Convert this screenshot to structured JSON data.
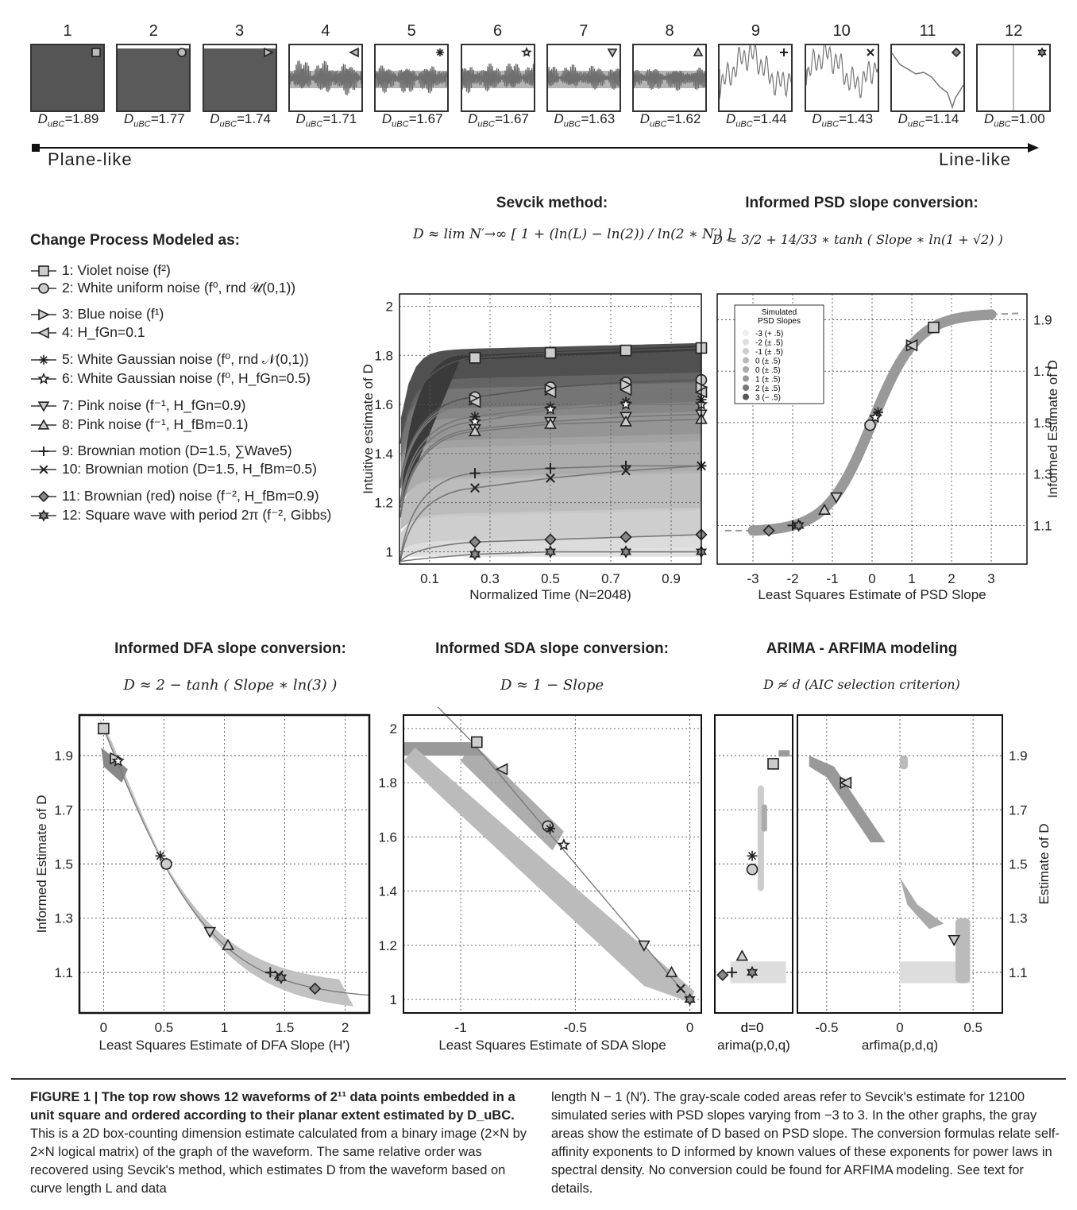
{
  "top_row": {
    "waveforms": [
      {
        "n": "1",
        "d": "1.89",
        "marker": "square"
      },
      {
        "n": "2",
        "d": "1.77",
        "marker": "circle"
      },
      {
        "n": "3",
        "d": "1.74",
        "marker": "tri-right"
      },
      {
        "n": "4",
        "d": "1.71",
        "marker": "tri-left"
      },
      {
        "n": "5",
        "d": "1.67",
        "marker": "asterisk"
      },
      {
        "n": "6",
        "d": "1.67",
        "marker": "star"
      },
      {
        "n": "7",
        "d": "1.63",
        "marker": "tri-down"
      },
      {
        "n": "8",
        "d": "1.62",
        "marker": "tri-up"
      },
      {
        "n": "9",
        "d": "1.44",
        "marker": "plus"
      },
      {
        "n": "10",
        "d": "1.43",
        "marker": "cross"
      },
      {
        "n": "11",
        "d": "1.14",
        "marker": "diamond"
      },
      {
        "n": "12",
        "d": "1.00",
        "marker": "hexstar"
      }
    ],
    "d_prefix": "D",
    "d_sub": "uBC",
    "left_label": "Plane-like",
    "right_label": "Line-like"
  },
  "legend": {
    "title": "Change Process Modeled as:",
    "items": [
      {
        "marker": "square",
        "text": "1: Violet noise (f²)"
      },
      {
        "marker": "circle",
        "text": "2: White uniform noise (f⁰, rnd 𝒰(0,1))"
      },
      {
        "marker": "tri-right",
        "text": "3: Blue noise (f¹)"
      },
      {
        "marker": "tri-left",
        "text": "4: H_fGn=0.1"
      },
      {
        "marker": "asterisk",
        "text": "5: White Gaussian noise (f⁰, rnd 𝒩(0,1))"
      },
      {
        "marker": "star",
        "text": "6: White Gaussian noise (f⁰, H_fGn=0.5)"
      },
      {
        "marker": "tri-down",
        "text": "7: Pink noise (f⁻¹, H_fGn=0.9)"
      },
      {
        "marker": "tri-up",
        "text": "8: Pink noise (f⁻¹, H_fBm=0.1)"
      },
      {
        "marker": "plus",
        "text": "9:  Brownian motion (D=1.5, ∑Wave5)"
      },
      {
        "marker": "cross",
        "text": "10: Brownian motion (D=1.5, H_fBm=0.5)"
      },
      {
        "marker": "diamond",
        "text": "11: Brownian (red) noise (f⁻², H_fBm=0.9)"
      },
      {
        "marker": "hexstar",
        "text": "12: Square wave with period 2π (f⁻², Gibbs)"
      }
    ]
  },
  "panels": {
    "sevcik": {
      "title": "Sevcik method:",
      "formula": "D ≈ lim N′→∞ [ 1 + (ln(L) − ln(2)) / ln(2 ∗ N′) ]"
    },
    "psd": {
      "title": "Informed PSD slope conversion:",
      "formula": "D ≈ 3/2 + 14/33 ∗ tanh ( Slope ∗ ln(1 + √2) )"
    },
    "dfa": {
      "title": "Informed DFA slope conversion:",
      "formula": "D ≈ 2 − tanh ( Slope ∗ ln(3) )"
    },
    "sda": {
      "title": "Informed SDA slope conversion:",
      "formula": "D ≈ 1 − Slope"
    },
    "arima": {
      "title": "ARIMA - ARFIMA modeling",
      "formula": "D ≉ d (AIC selection criterion)"
    }
  },
  "chart_data": [
    {
      "id": "sevcik",
      "type": "line",
      "xlabel": "Normalized Time (N=2048)",
      "ylabel": "Intuitive estimate of D",
      "xlim": [
        0,
        1
      ],
      "ylim": [
        0.95,
        2.05
      ],
      "xticks": [
        "0.1",
        "0.3",
        "0.5",
        "0.7",
        "0.9"
      ],
      "yticks": [
        "1",
        "1.2",
        "1.4",
        "1.6",
        "1.8",
        "2"
      ],
      "x": [
        0.25,
        0.5,
        0.75,
        1.0
      ],
      "series": [
        {
          "marker": "square",
          "values": [
            1.79,
            1.81,
            1.82,
            1.83
          ]
        },
        {
          "marker": "circle",
          "values": [
            1.63,
            1.67,
            1.69,
            1.7
          ]
        },
        {
          "marker": "tri-right",
          "values": [
            1.62,
            1.66,
            1.68,
            1.67
          ]
        },
        {
          "marker": "tri-left",
          "values": [
            1.61,
            1.65,
            1.66,
            1.65
          ]
        },
        {
          "marker": "asterisk",
          "values": [
            1.55,
            1.59,
            1.61,
            1.62
          ]
        },
        {
          "marker": "star",
          "values": [
            1.53,
            1.58,
            1.6,
            1.6
          ]
        },
        {
          "marker": "tri-down",
          "values": [
            1.5,
            1.53,
            1.55,
            1.56
          ]
        },
        {
          "marker": "tri-up",
          "values": [
            1.49,
            1.52,
            1.53,
            1.54
          ]
        },
        {
          "marker": "plus",
          "values": [
            1.32,
            1.34,
            1.35,
            1.35
          ]
        },
        {
          "marker": "cross",
          "values": [
            1.26,
            1.3,
            1.33,
            1.35
          ]
        },
        {
          "marker": "diamond",
          "values": [
            1.04,
            1.05,
            1.06,
            1.07
          ]
        },
        {
          "marker": "hexstar",
          "values": [
            0.99,
            1.0,
            1.0,
            1.0
          ]
        }
      ]
    },
    {
      "id": "psd",
      "type": "scatter",
      "xlabel": "Least Squares Estimate of PSD Slope",
      "ylabel": "Informed Estimate of D",
      "xlim": [
        -3.9,
        3.9
      ],
      "ylim": [
        0.95,
        2.0
      ],
      "xticks": [
        "-3",
        "-2",
        "-1",
        "0",
        "1",
        "2",
        "3"
      ],
      "yticks": [
        "1.1",
        "1.3",
        "1.5",
        "1.7",
        "1.9"
      ],
      "legend": {
        "title": "Simulated PSD Slopes",
        "entries": [
          "-3 (+ .5)",
          "-2 (± .5)",
          "-1 (± .5)",
          "0 (± .5)",
          "0 (± .5)",
          "1 (± .5)",
          "2 (± .5)",
          "3 (− .5)"
        ]
      },
      "points": [
        {
          "marker": "square",
          "x": 1.55,
          "y": 1.87
        },
        {
          "marker": "tri-right",
          "x": 1.0,
          "y": 1.8
        },
        {
          "marker": "tri-left",
          "x": 1.0,
          "y": 1.8
        },
        {
          "marker": "asterisk",
          "x": 0.15,
          "y": 1.54
        },
        {
          "marker": "star",
          "x": 0.08,
          "y": 1.52
        },
        {
          "marker": "circle",
          "x": -0.05,
          "y": 1.49
        },
        {
          "marker": "tri-down",
          "x": -0.9,
          "y": 1.21
        },
        {
          "marker": "tri-up",
          "x": -1.2,
          "y": 1.16
        },
        {
          "marker": "plus",
          "x": -2.0,
          "y": 1.1
        },
        {
          "marker": "cross",
          "x": -1.9,
          "y": 1.1
        },
        {
          "marker": "hexstar",
          "x": -1.85,
          "y": 1.1
        },
        {
          "marker": "diamond",
          "x": -2.6,
          "y": 1.08
        }
      ]
    },
    {
      "id": "dfa",
      "type": "scatter",
      "xlabel": "Least Squares Estimate of DFA Slope (H')",
      "ylabel": "Informed Estimate of D",
      "xlim": [
        -0.2,
        2.2
      ],
      "ylim": [
        0.95,
        2.05
      ],
      "xticks": [
        "0",
        "0.5",
        "1",
        "1.5",
        "2"
      ],
      "yticks": [
        "1.1",
        "1.3",
        "1.5",
        "1.7",
        "1.9"
      ],
      "points": [
        {
          "marker": "square",
          "x": 0.0,
          "y": 2.0
        },
        {
          "marker": "tri-right",
          "x": 0.1,
          "y": 1.89
        },
        {
          "marker": "star",
          "x": 0.12,
          "y": 1.88
        },
        {
          "marker": "asterisk",
          "x": 0.47,
          "y": 1.53
        },
        {
          "marker": "star",
          "x": 0.52,
          "y": 1.5
        },
        {
          "marker": "circle",
          "x": 0.52,
          "y": 1.5
        },
        {
          "marker": "tri-down",
          "x": 0.88,
          "y": 1.25
        },
        {
          "marker": "tri-up",
          "x": 1.03,
          "y": 1.2
        },
        {
          "marker": "plus",
          "x": 1.38,
          "y": 1.1
        },
        {
          "marker": "cross",
          "x": 1.45,
          "y": 1.09
        },
        {
          "marker": "hexstar",
          "x": 1.47,
          "y": 1.08
        },
        {
          "marker": "diamond",
          "x": 1.75,
          "y": 1.04
        }
      ]
    },
    {
      "id": "sda",
      "type": "scatter",
      "xlabel": "Least Squares Estimate of SDA Slope",
      "ylabel": "",
      "xlim": [
        -1.25,
        0.05
      ],
      "ylim": [
        0.95,
        2.05
      ],
      "xticks": [
        "-1",
        "-0.5",
        "0"
      ],
      "yticks": [
        "1",
        "1.2",
        "1.4",
        "1.6",
        "1.8",
        "2"
      ],
      "points": [
        {
          "marker": "square",
          "x": -0.93,
          "y": 1.95
        },
        {
          "marker": "tri-left",
          "x": -0.82,
          "y": 1.85
        },
        {
          "marker": "circle",
          "x": -0.62,
          "y": 1.64
        },
        {
          "marker": "asterisk",
          "x": -0.61,
          "y": 1.63
        },
        {
          "marker": "star",
          "x": -0.55,
          "y": 1.57
        },
        {
          "marker": "tri-down",
          "x": -0.2,
          "y": 1.2
        },
        {
          "marker": "tri-up",
          "x": -0.08,
          "y": 1.1
        },
        {
          "marker": "cross",
          "x": -0.04,
          "y": 1.04
        },
        {
          "marker": "hexstar",
          "x": 0.0,
          "y": 1.0
        }
      ]
    },
    {
      "id": "arima",
      "type": "scatter",
      "xlabel": "arima(p,0,q)",
      "ylabel": "",
      "xticks": [
        "d=0"
      ],
      "ylim": [
        0.95,
        2.05
      ],
      "points": [
        {
          "marker": "square",
          "x": 0.75,
          "y": 1.87
        },
        {
          "marker": "asterisk",
          "x": 0.48,
          "y": 1.53
        },
        {
          "marker": "circle",
          "x": 0.48,
          "y": 1.48
        },
        {
          "marker": "tri-up",
          "x": 0.35,
          "y": 1.16
        },
        {
          "marker": "hexstar",
          "x": 0.48,
          "y": 1.1
        },
        {
          "marker": "plus",
          "x": 0.22,
          "y": 1.1
        },
        {
          "marker": "diamond",
          "x": 0.1,
          "y": 1.09
        }
      ]
    },
    {
      "id": "arfima",
      "type": "scatter",
      "xlabel": "arfima(p,d,q)",
      "ylabel": "Estimate of D",
      "xlim": [
        -0.7,
        0.7
      ],
      "ylim": [
        0.95,
        2.05
      ],
      "xticks": [
        "-0.5",
        "0",
        "0.5"
      ],
      "yticks": [
        "1.1",
        "1.3",
        "1.5",
        "1.7",
        "1.9"
      ],
      "points": [
        {
          "marker": "tri-right",
          "x": -0.37,
          "y": 1.8
        },
        {
          "marker": "tri-left",
          "x": -0.37,
          "y": 1.8
        },
        {
          "marker": "tri-down",
          "x": 0.37,
          "y": 1.22
        }
      ]
    }
  ],
  "caption": {
    "figure_label": "FIGURE 1 | The top row shows 12 waveforms of 2¹¹ data points embedded in a unit square and ordered according to their planar extent estimated by D_uBC.",
    "col1": "This is a 2D box-counting dimension estimate calculated from a binary image (2×N by 2×N logical matrix) of the graph of the waveform. The same relative order was recovered using Sevcik's method, which estimates D from the waveform based on curve length L and data",
    "col2": "length N − 1 (N′). The gray-scale coded areas refer to Sevcik's estimate for 12100 simulated series with PSD slopes varying from −3 to 3. In the other graphs, the gray areas show the estimate of D based on PSD slope. The conversion formulas relate self-affinity exponents to D informed by known values of these exponents for power laws in spectral density. No conversion could be found for ARFIMA modeling. See text for details."
  }
}
